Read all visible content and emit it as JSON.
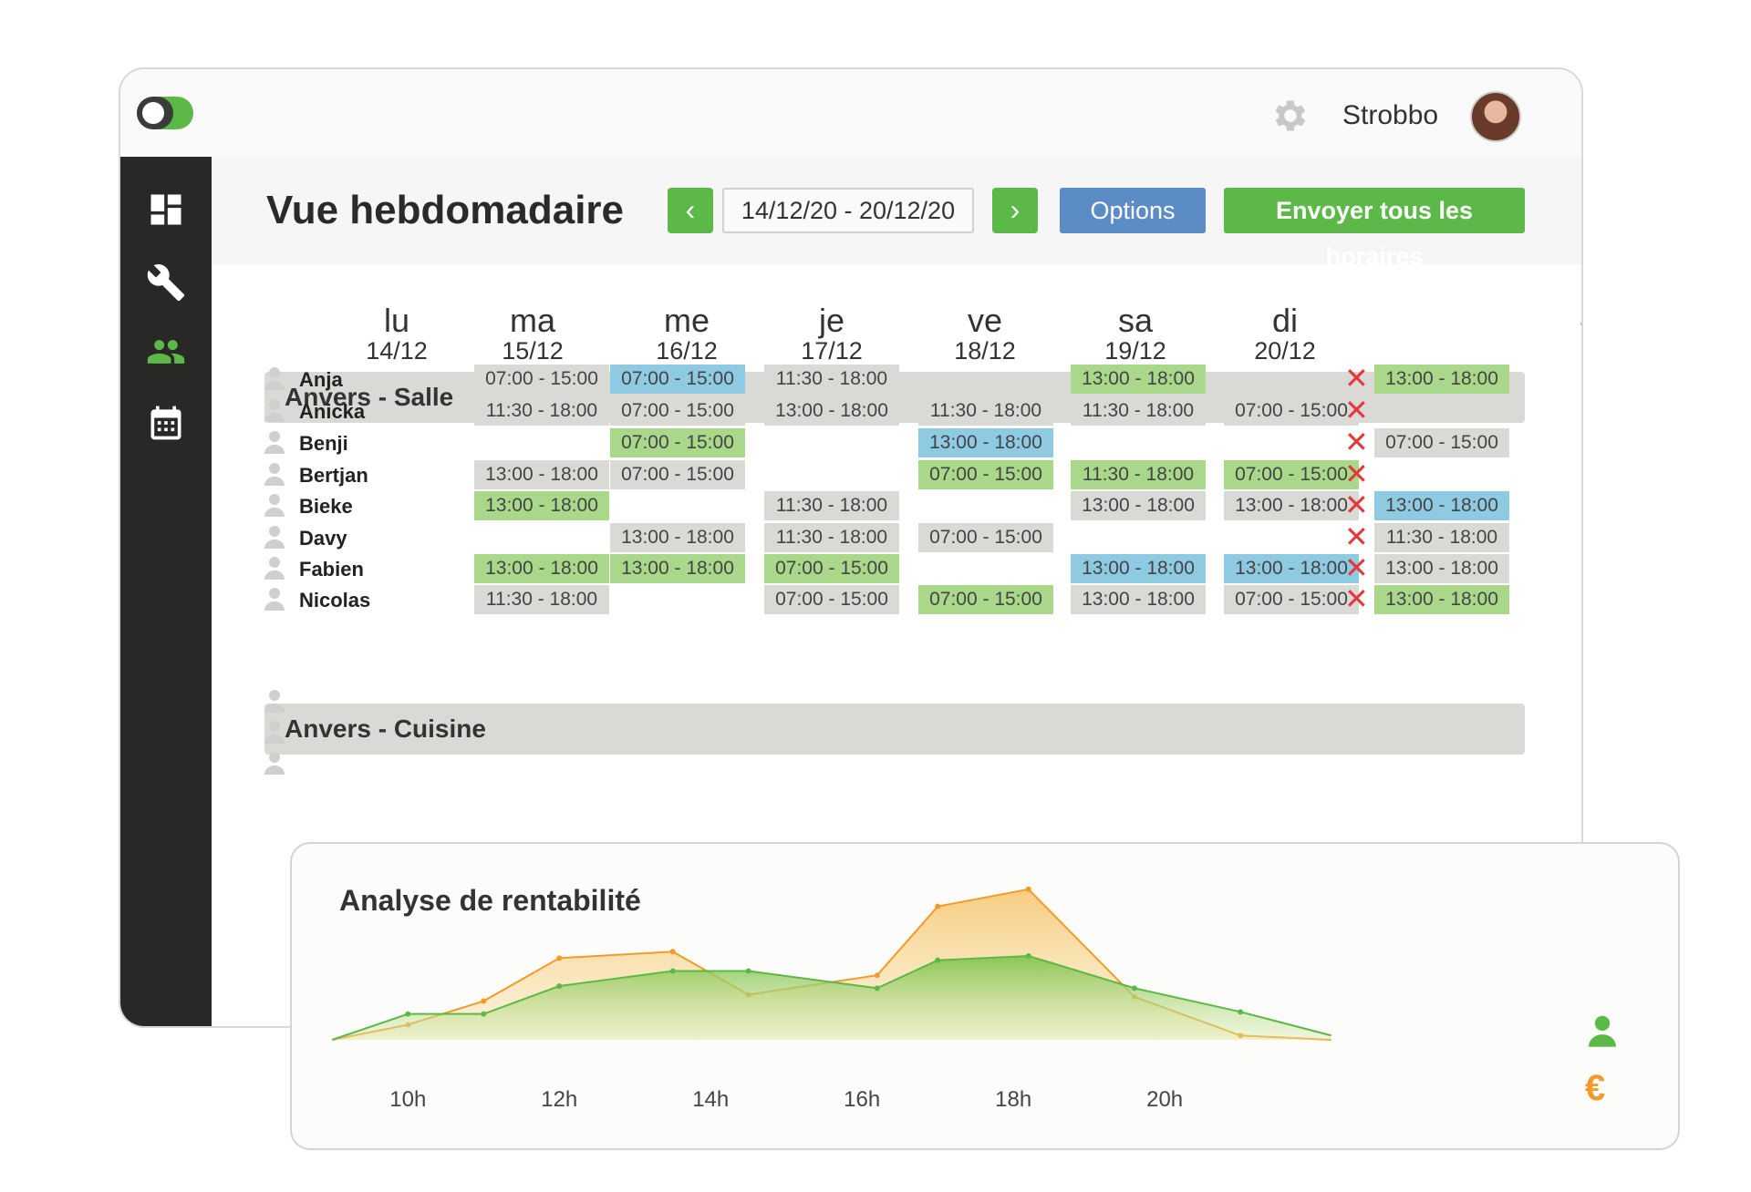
{
  "app": {
    "brand": "Strobbo",
    "title": "Vue hebdomadaire"
  },
  "toolbar": {
    "date_range": "14/12/20 - 20/12/20",
    "prev": "‹",
    "next": "›",
    "options_label": "Options",
    "send_label": "Envoyer tous les horaires"
  },
  "days": [
    {
      "name": "lu",
      "date": "14/12"
    },
    {
      "name": "ma",
      "date": "15/12"
    },
    {
      "name": "me",
      "date": "16/12"
    },
    {
      "name": "je",
      "date": "17/12"
    },
    {
      "name": "ve",
      "date": "18/12"
    },
    {
      "name": "sa",
      "date": "19/12"
    },
    {
      "name": "di",
      "date": "20/12"
    }
  ],
  "sections": [
    {
      "title": "Anvers - Salle"
    },
    {
      "title": "Anvers - Cuisine"
    }
  ],
  "shift_colors": {
    "g": "#d9d9d6",
    "gr": "#a9d88a",
    "b": "#8ecae2"
  },
  "employees": [
    {
      "name": "Anja",
      "shifts": [
        [
          "07:00 - 15:00",
          "g"
        ],
        [
          "07:00 - 15:00",
          "b"
        ],
        [
          "11:30 - 18:00",
          "g"
        ],
        null,
        [
          "13:00 - 18:00",
          "gr"
        ],
        null,
        [
          "13:00 - 18:00",
          "gr"
        ]
      ]
    },
    {
      "name": "Anicka",
      "shifts": [
        [
          "11:30 - 18:00",
          "g"
        ],
        [
          "07:00 - 15:00",
          "g"
        ],
        [
          "13:00 - 18:00",
          "g"
        ],
        [
          "11:30 - 18:00",
          "g"
        ],
        [
          "11:30 - 18:00",
          "g"
        ],
        [
          "07:00 - 15:00",
          "g"
        ],
        null
      ]
    },
    {
      "name": "Benji",
      "shifts": [
        null,
        [
          "07:00 - 15:00",
          "gr"
        ],
        null,
        [
          "13:00 - 18:00",
          "b"
        ],
        null,
        null,
        [
          "07:00 - 15:00",
          "g"
        ]
      ]
    },
    {
      "name": "Bertjan",
      "shifts": [
        [
          "13:00 - 18:00",
          "g"
        ],
        [
          "07:00 - 15:00",
          "g"
        ],
        null,
        [
          "07:00 - 15:00",
          "gr"
        ],
        [
          "11:30 - 18:00",
          "gr"
        ],
        [
          "07:00 - 15:00",
          "gr"
        ],
        null
      ]
    },
    {
      "name": "Bieke",
      "shifts": [
        [
          "13:00 - 18:00",
          "gr"
        ],
        null,
        [
          "11:30 - 18:00",
          "g"
        ],
        null,
        [
          "13:00 - 18:00",
          "g"
        ],
        [
          "13:00 - 18:00",
          "g"
        ],
        [
          "13:00 - 18:00",
          "b"
        ]
      ]
    },
    {
      "name": "Davy",
      "shifts": [
        null,
        [
          "13:00 - 18:00",
          "g"
        ],
        [
          "11:30 - 18:00",
          "g"
        ],
        [
          "07:00 - 15:00",
          "g"
        ],
        null,
        null,
        [
          "11:30 - 18:00",
          "g"
        ]
      ]
    },
    {
      "name": "Fabien",
      "shifts": [
        [
          "13:00 - 18:00",
          "gr"
        ],
        [
          "13:00 - 18:00",
          "gr"
        ],
        [
          "07:00 - 15:00",
          "gr"
        ],
        null,
        [
          "13:00 - 18:00",
          "b"
        ],
        [
          "13:00 - 18:00",
          "b"
        ],
        [
          "13:00 - 18:00",
          "g"
        ]
      ]
    },
    {
      "name": "Nicolas",
      "shifts": [
        [
          "11:30 - 18:00",
          "g"
        ],
        null,
        [
          "07:00 - 15:00",
          "g"
        ],
        [
          "07:00 - 15:00",
          "gr"
        ],
        [
          "13:00 - 18:00",
          "g"
        ],
        [
          "07:00 - 15:00",
          "g"
        ],
        [
          "13:00 - 18:00",
          "gr"
        ]
      ]
    }
  ],
  "chart_data": {
    "type": "area",
    "title": "Analyse de rentabilité",
    "x": [
      9,
      10,
      11,
      12,
      13.5,
      14.5,
      16.2,
      17,
      18.2,
      19.6,
      21,
      22.2
    ],
    "tick_labels": [
      "10h",
      "12h",
      "14h",
      "16h",
      "18h",
      "20h"
    ],
    "tick_values": [
      10,
      12,
      14,
      16,
      18,
      20
    ],
    "series": [
      {
        "legend_icon": "person-icon",
        "color": "#5cb847",
        "values": [
          0,
          1.2,
          1.2,
          2.5,
          3.2,
          3.2,
          2.4,
          3.7,
          3.9,
          2.4,
          1.3,
          0.2
        ]
      },
      {
        "legend_icon": "euro-icon",
        "color": "#f39a2b",
        "values": [
          0,
          0.7,
          1.8,
          3.8,
          4.1,
          2.1,
          3.0,
          6.2,
          7.0,
          2.0,
          0.2,
          0
        ]
      }
    ],
    "xlim": [
      8.9,
      22.3
    ],
    "ylim": [
      0,
      7.5
    ],
    "grid": false
  }
}
